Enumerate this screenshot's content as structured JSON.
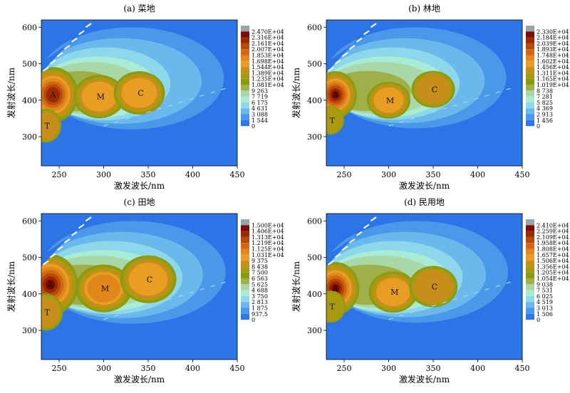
{
  "chart_data": [
    {
      "type": "heatmap",
      "title": "(a) 菜地",
      "xlabel": "激发波长/nm",
      "ylabel": "发射波长/nm",
      "xlim": [
        230,
        450
      ],
      "ylim": [
        220,
        620
      ],
      "xticks": [
        250,
        300,
        350,
        400,
        450
      ],
      "yticks": [
        300,
        400,
        500,
        600
      ],
      "colorbar_levels": [
        "2.470E+04",
        "2.316E+04",
        "2.161E+04",
        "2.007E+04",
        "1.853E+04",
        "1.698E+04",
        "1.544E+04",
        "1.389E+04",
        "1.235E+04",
        "1.081E+04",
        "9 263",
        "7 719",
        "6 175",
        "4 631",
        "3 088",
        "1 544",
        "0"
      ],
      "peaks": [
        {
          "label": "A",
          "ex": 248,
          "em": 415,
          "level": 13
        },
        {
          "label": "M",
          "ex": 295,
          "em": 410,
          "level": 9
        },
        {
          "label": "C",
          "ex": 340,
          "em": 420,
          "level": 9
        },
        {
          "label": "T",
          "ex": 235,
          "em": 330,
          "level": 8
        }
      ],
      "spread": 1.0
    },
    {
      "type": "heatmap",
      "title": "(b) 林地",
      "xlabel": "激发波长/nm",
      "ylabel": "发射波长/nm",
      "xlim": [
        230,
        450
      ],
      "ylim": [
        220,
        620
      ],
      "xticks": [
        250,
        300,
        350,
        400,
        450
      ],
      "yticks": [
        300,
        400,
        500,
        600
      ],
      "colorbar_levels": [
        "2.330E+04",
        "2.184E+04",
        "2.039E+04",
        "1.893E+04",
        "1.748E+04",
        "1.602E+04",
        "1.456E+04",
        "1.311E+04",
        "1.165E+04",
        "1.019E+04",
        "8 738",
        "7 281",
        "5 825",
        "4 369",
        "2 913",
        "1 456",
        "0"
      ],
      "peaks": [
        {
          "label": "A",
          "ex": 245,
          "em": 415,
          "level": 14
        },
        {
          "label": "M",
          "ex": 300,
          "em": 400,
          "level": 9
        },
        {
          "label": "C",
          "ex": 350,
          "em": 430,
          "level": 8
        },
        {
          "label": "T",
          "ex": 235,
          "em": 345,
          "level": 7
        }
      ],
      "spread": 0.85
    },
    {
      "type": "heatmap",
      "title": "(c) 田地",
      "xlabel": "激发波长/nm",
      "ylabel": "发射波长/nm",
      "xlim": [
        230,
        450
      ],
      "ylim": [
        220,
        620
      ],
      "xticks": [
        250,
        300,
        350,
        400,
        450
      ],
      "yticks": [
        300,
        400,
        500,
        600
      ],
      "colorbar_levels": [
        "1.500E+04",
        "1.406E+04",
        "1.313E+04",
        "1.219E+04",
        "1.125E+04",
        "1.031E+04",
        "9 375",
        "8 438",
        "7 500",
        "6 563",
        "5 625",
        "4 688",
        "3 750",
        "2 813",
        "1 875",
        "937.5",
        "0"
      ],
      "peaks": [
        {
          "label": "A",
          "ex": 245,
          "em": 425,
          "level": 15
        },
        {
          "label": "M",
          "ex": 300,
          "em": 415,
          "level": 10
        },
        {
          "label": "C",
          "ex": 350,
          "em": 440,
          "level": 9
        },
        {
          "label": "T",
          "ex": 235,
          "em": 350,
          "level": 8
        }
      ],
      "spread": 1.1
    },
    {
      "type": "heatmap",
      "title": "(d) 民用地",
      "xlabel": "激发波长/nm",
      "ylabel": "发射波长/nm",
      "xlim": [
        230,
        450
      ],
      "ylim": [
        220,
        620
      ],
      "xticks": [
        250,
        300,
        350,
        400,
        450
      ],
      "yticks": [
        300,
        400,
        500,
        600
      ],
      "colorbar_levels": [
        "2.410E+04",
        "2.259E+04",
        "2.109E+04",
        "1.958E+04",
        "1.808E+04",
        "1.657E+04",
        "1.506E+04",
        "1.356E+04",
        "1.205E+04",
        "1.054E+04",
        "9 038",
        "7 531",
        "6 025",
        "4 519",
        "3 013",
        "1 506",
        "0"
      ],
      "peaks": [
        {
          "label": "A",
          "ex": 245,
          "em": 415,
          "level": 14
        },
        {
          "label": "M",
          "ex": 305,
          "em": 405,
          "level": 9
        },
        {
          "label": "C",
          "ex": 350,
          "em": 420,
          "level": 8
        },
        {
          "label": "T",
          "ex": 235,
          "em": 365,
          "level": 7
        }
      ],
      "spread": 0.95
    }
  ],
  "colors": {
    "colorbar": [
      "#9aa3aa",
      "#7a0a00",
      "#9b2a00",
      "#b84a0a",
      "#cf6a12",
      "#e0861a",
      "#e89e22",
      "#c88e1a",
      "#a99a10",
      "#8f9a14",
      "#9fb04a",
      "#a9d8a8",
      "#a8ecd8",
      "#8cd8ea",
      "#6ab8ec",
      "#4a98ea",
      "#2d74e6"
    ],
    "background": "#2d74e6"
  }
}
